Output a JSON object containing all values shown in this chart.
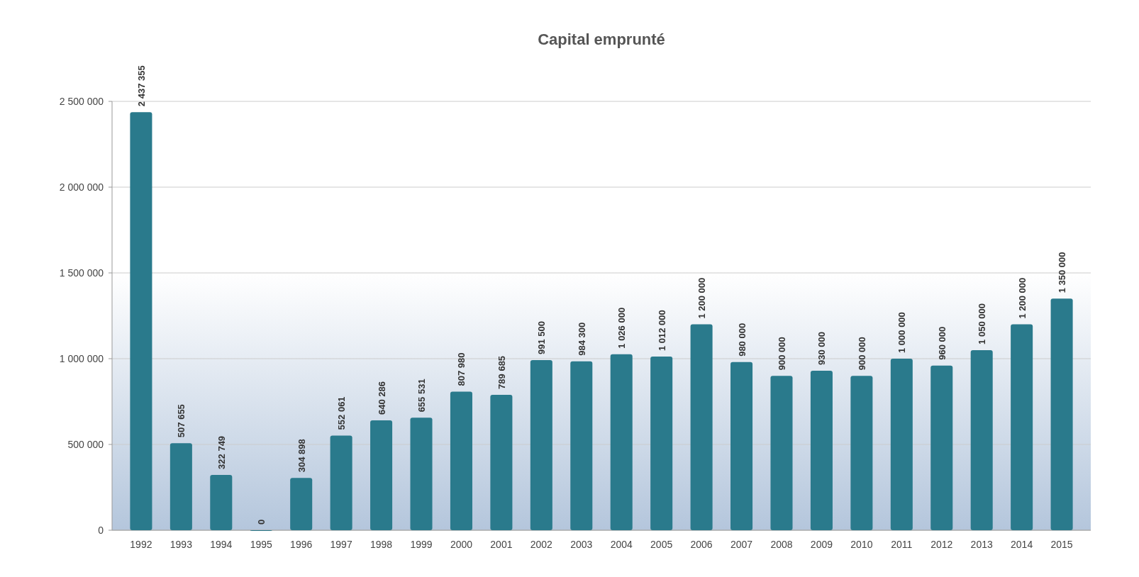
{
  "chart_data": {
    "type": "bar",
    "title": "Capital emprunté",
    "categories": [
      "1992",
      "1993",
      "1994",
      "1995",
      "1996",
      "1997",
      "1998",
      "1999",
      "2000",
      "2001",
      "2002",
      "2003",
      "2004",
      "2005",
      "2006",
      "2007",
      "2008",
      "2009",
      "2010",
      "2011",
      "2012",
      "2013",
      "2014",
      "2015"
    ],
    "values": [
      2437355,
      507655,
      322749,
      0,
      304898,
      552061,
      640286,
      655531,
      807980,
      789685,
      991500,
      984300,
      1026000,
      1012000,
      1200000,
      980000,
      900000,
      930000,
      900000,
      1000000,
      960000,
      1050000,
      1200000,
      1350000
    ],
    "value_labels": [
      "2 437 355",
      "507 655",
      "322 749",
      "0",
      "304 898",
      "552 061",
      "640 286",
      "655 531",
      "807 980",
      "789 685",
      "991 500",
      "984 300",
      "1 026 000",
      "1 012 000",
      "1 200 000",
      "980 000",
      "900 000",
      "930 000",
      "900 000",
      "1 000 000",
      "960 000",
      "1 050 000",
      "1 200 000",
      "1 350 000"
    ],
    "color": "#2a7a8c",
    "ylim": [
      0,
      2500000
    ],
    "yticks": [
      {
        "value": 0,
        "label": "0"
      },
      {
        "value": 500000,
        "label": "500 000"
      },
      {
        "value": 1000000,
        "label": "1 000 000"
      },
      {
        "value": 1500000,
        "label": "1 500 000"
      },
      {
        "value": 2000000,
        "label": "2 000 000"
      },
      {
        "value": 2500000,
        "label": "2 500 000"
      }
    ],
    "grid": "y"
  }
}
